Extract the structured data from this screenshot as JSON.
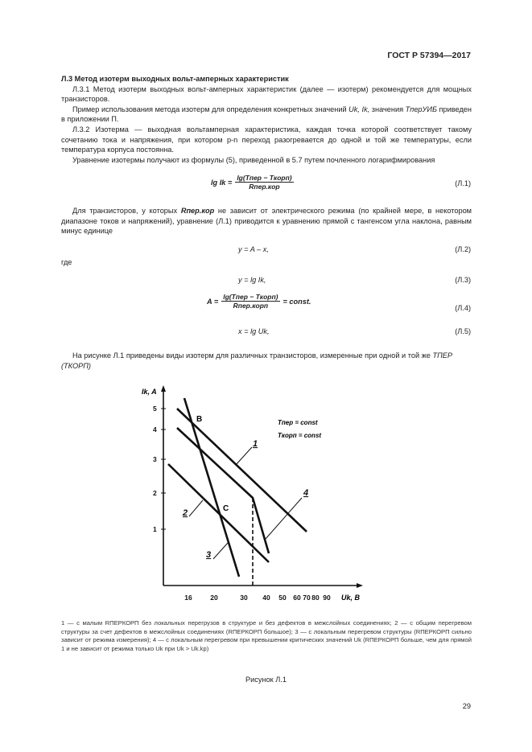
{
  "header": {
    "doc_id": "ГОСТ Р 57394—2017"
  },
  "section": {
    "title": "Л.3 Метод изотерм выходных вольт-амперных характеристик",
    "p1": "Л.3.1 Метод изотерм выходных вольт-амперных характеристик (далее — изотерм) рекомендуется для мощных транзисторов.",
    "p2_a": "Пример использования метода изотерм для определения конкретных значений ",
    "p2_vars": "Uk, Ik,",
    "p2_b": " значения ",
    "p2_t": "TперУИБ",
    "p2_c": " приведен в приложении П.",
    "p3": "Л.3.2 Изотерма — выходная вольтамперная характеристика, каждая точка которой соответствует такому сочетанию тока и напряжения, при котором p-n переход разогревается до одной и той же температуры, если температура корпуса постоянна.",
    "p4": "Уравнение изотермы получают из формулы (5), приведенной в 5.7 путем почленного логарифмирования",
    "p5_a": "Для транзисторов, у которых ",
    "p5_r": "Rпер.кор",
    "p5_b": " не зависит от электрического режима (по крайней мере, в некотором диапазоне токов и напряжений), уравнение (Л.1) приводится к уравнению прямой с тангенсом угла наклона, равным минус единице",
    "where": "где",
    "p6_a": "На рисунке Л.1 приведены виды изотерм для различных транзисторов, измеренные при одной и той же ",
    "p6_t": "TПЕР",
    "p6_b": "(TКОРП)"
  },
  "equations": [
    {
      "lhs": "lg Ik =",
      "num": "lg(Tпер − Tкорп)",
      "den": "Rпер.кор",
      "tail": "",
      "label": "(Л.1)"
    },
    {
      "text": "y = A – x,",
      "label": "(Л.2)"
    },
    {
      "text": "y = lg Ik,",
      "label": "(Л.3)"
    },
    {
      "lhs": "A =",
      "num": "lg(Tпер − Tкорп)",
      "den": "Rпер.корп",
      "tail": "= const.",
      "label": "(Л.4)"
    },
    {
      "text": "x = lg Uk,",
      "label": "(Л.5)"
    }
  ],
  "figure": {
    "y_axis_label": "Ik, A",
    "x_axis_label": "Uk, B",
    "y_ticks": [
      "5",
      "4",
      "3",
      "2",
      "1"
    ],
    "x_ticks": [
      "16",
      "20",
      "30",
      "40",
      "50",
      "60",
      "70",
      "80",
      "90"
    ],
    "legend": [
      "Tпер = const",
      "Tкорп = const"
    ],
    "curve_labels": [
      "1",
      "2",
      "3",
      "4"
    ],
    "points": [
      "B",
      "C"
    ],
    "caption": "1 — с малым RПЕРКОРП без локальных перегрузов в структуре и без дефектов в межслойных соединениях; 2 — с общим перегревом структуры за счет дефектов в межслойных соединениях (RПЕРКОРП большое); 3 — с локальным перегревом структуры (RПЕРКОРП сильно зависит от режима измерения); 4 — с локальным перегревом при превышении критических значений Uk (RПЕРКОРП больше, чем для прямой 1 и не зависит от режима только Uk при Uk > Uk.kp)",
    "title": "Рисунок Л.1"
  },
  "page_number": "29"
}
